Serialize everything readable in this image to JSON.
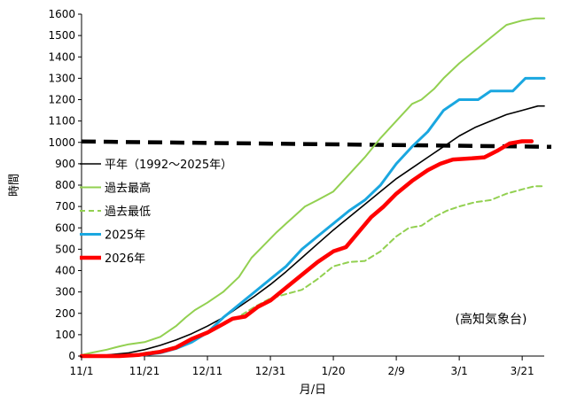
{
  "chart_data": {
    "type": "line",
    "title": "",
    "xlabel": "月/日",
    "ylabel": "時間",
    "note": "(高知気象台)",
    "x_domain_days": [
      0,
      147
    ],
    "ylim": [
      0,
      1600
    ],
    "yticks": [
      0,
      100,
      200,
      300,
      400,
      500,
      600,
      700,
      800,
      900,
      1000,
      1100,
      1200,
      1300,
      1400,
      1500,
      1600
    ],
    "xticks": [
      {
        "label": "11/1",
        "day": 0
      },
      {
        "label": "11/21",
        "day": 20
      },
      {
        "label": "12/11",
        "day": 40
      },
      {
        "label": "12/31",
        "day": 60
      },
      {
        "label": "1/20",
        "day": 80
      },
      {
        "label": "2/9",
        "day": 100
      },
      {
        "label": "3/1",
        "day": 120
      },
      {
        "label": "3/21",
        "day": 140
      }
    ],
    "reference_line": {
      "value": 1000,
      "style": "dashed",
      "color": "#000000"
    },
    "legend_position": "middle-left",
    "series": [
      {
        "name": "平年（1992～2025年）",
        "color": "#000000",
        "dash": "solid",
        "width": 1.6,
        "points": [
          [
            0,
            0
          ],
          [
            8,
            5
          ],
          [
            15,
            15
          ],
          [
            20,
            30
          ],
          [
            25,
            50
          ],
          [
            30,
            75
          ],
          [
            35,
            105
          ],
          [
            40,
            140
          ],
          [
            45,
            180
          ],
          [
            50,
            230
          ],
          [
            55,
            280
          ],
          [
            60,
            335
          ],
          [
            65,
            395
          ],
          [
            70,
            460
          ],
          [
            75,
            525
          ],
          [
            80,
            590
          ],
          [
            85,
            650
          ],
          [
            90,
            710
          ],
          [
            95,
            770
          ],
          [
            100,
            830
          ],
          [
            105,
            880
          ],
          [
            110,
            930
          ],
          [
            115,
            980
          ],
          [
            120,
            1030
          ],
          [
            125,
            1070
          ],
          [
            130,
            1100
          ],
          [
            135,
            1130
          ],
          [
            140,
            1150
          ],
          [
            145,
            1170
          ],
          [
            147,
            1170
          ]
        ]
      },
      {
        "name": "過去最高",
        "color": "#92D050",
        "dash": "solid",
        "width": 2,
        "points": [
          [
            0,
            5
          ],
          [
            3,
            15
          ],
          [
            8,
            30
          ],
          [
            12,
            45
          ],
          [
            15,
            55
          ],
          [
            20,
            65
          ],
          [
            25,
            90
          ],
          [
            30,
            140
          ],
          [
            33,
            180
          ],
          [
            36,
            215
          ],
          [
            40,
            250
          ],
          [
            45,
            300
          ],
          [
            50,
            370
          ],
          [
            54,
            460
          ],
          [
            58,
            520
          ],
          [
            62,
            580
          ],
          [
            65,
            620
          ],
          [
            68,
            660
          ],
          [
            71,
            700
          ],
          [
            75,
            730
          ],
          [
            80,
            770
          ],
          [
            85,
            850
          ],
          [
            90,
            930
          ],
          [
            95,
            1020
          ],
          [
            100,
            1100
          ],
          [
            105,
            1180
          ],
          [
            108,
            1200
          ],
          [
            112,
            1250
          ],
          [
            115,
            1300
          ],
          [
            120,
            1370
          ],
          [
            125,
            1430
          ],
          [
            130,
            1490
          ],
          [
            135,
            1550
          ],
          [
            140,
            1570
          ],
          [
            144,
            1580
          ],
          [
            147,
            1580
          ]
        ]
      },
      {
        "name": "過去最低",
        "color": "#92D050",
        "dash": "dashed",
        "width": 2,
        "points": [
          [
            0,
            0
          ],
          [
            15,
            0
          ],
          [
            20,
            15
          ],
          [
            25,
            25
          ],
          [
            30,
            45
          ],
          [
            35,
            80
          ],
          [
            40,
            115
          ],
          [
            45,
            150
          ],
          [
            50,
            185
          ],
          [
            55,
            230
          ],
          [
            60,
            270
          ],
          [
            65,
            290
          ],
          [
            70,
            310
          ],
          [
            75,
            360
          ],
          [
            80,
            420
          ],
          [
            85,
            440
          ],
          [
            90,
            445
          ],
          [
            95,
            490
          ],
          [
            100,
            560
          ],
          [
            104,
            600
          ],
          [
            108,
            610
          ],
          [
            112,
            650
          ],
          [
            116,
            680
          ],
          [
            120,
            700
          ],
          [
            125,
            720
          ],
          [
            130,
            730
          ],
          [
            135,
            760
          ],
          [
            140,
            780
          ],
          [
            144,
            795
          ],
          [
            147,
            795
          ]
        ]
      },
      {
        "name": "2025年",
        "color": "#1AA7E0",
        "dash": "solid",
        "width": 3,
        "points": [
          [
            0,
            0
          ],
          [
            15,
            0
          ],
          [
            20,
            5
          ],
          [
            25,
            15
          ],
          [
            30,
            35
          ],
          [
            35,
            65
          ],
          [
            40,
            110
          ],
          [
            45,
            180
          ],
          [
            50,
            240
          ],
          [
            55,
            300
          ],
          [
            60,
            360
          ],
          [
            65,
            420
          ],
          [
            70,
            500
          ],
          [
            75,
            560
          ],
          [
            80,
            620
          ],
          [
            85,
            680
          ],
          [
            90,
            730
          ],
          [
            95,
            800
          ],
          [
            100,
            900
          ],
          [
            105,
            980
          ],
          [
            110,
            1050
          ],
          [
            115,
            1150
          ],
          [
            120,
            1200
          ],
          [
            126,
            1200
          ],
          [
            130,
            1240
          ],
          [
            137,
            1240
          ],
          [
            141,
            1300
          ],
          [
            147,
            1300
          ]
        ]
      },
      {
        "name": "2026年",
        "color": "#FF0000",
        "dash": "solid",
        "width": 4.5,
        "points": [
          [
            0,
            0
          ],
          [
            12,
            0
          ],
          [
            18,
            5
          ],
          [
            25,
            20
          ],
          [
            30,
            40
          ],
          [
            35,
            80
          ],
          [
            40,
            110
          ],
          [
            45,
            150
          ],
          [
            48,
            175
          ],
          [
            52,
            185
          ],
          [
            56,
            230
          ],
          [
            60,
            260
          ],
          [
            65,
            320
          ],
          [
            70,
            380
          ],
          [
            75,
            440
          ],
          [
            80,
            490
          ],
          [
            84,
            510
          ],
          [
            88,
            580
          ],
          [
            92,
            650
          ],
          [
            96,
            700
          ],
          [
            100,
            760
          ],
          [
            105,
            820
          ],
          [
            110,
            870
          ],
          [
            114,
            900
          ],
          [
            118,
            920
          ],
          [
            124,
            925
          ],
          [
            128,
            930
          ],
          [
            132,
            960
          ],
          [
            136,
            995
          ],
          [
            140,
            1005
          ],
          [
            143,
            1005
          ]
        ]
      }
    ]
  }
}
